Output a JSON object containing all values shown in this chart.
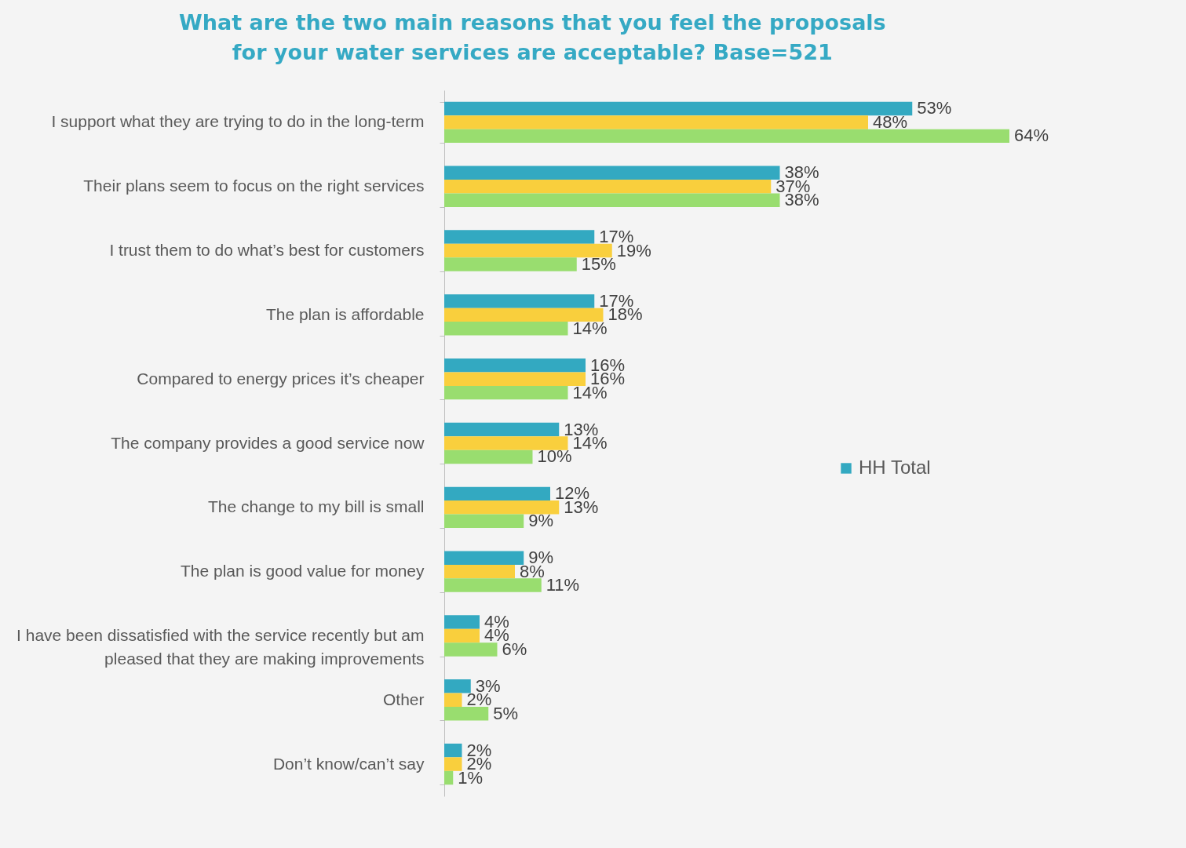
{
  "chart_data": {
    "type": "bar",
    "orientation": "horizontal",
    "title": "What are the two main reasons that you feel the proposals for your water services are acceptable? Base=521",
    "categories": [
      "I support what they are trying to do in the long-term",
      "Their plans seem to focus on the right services",
      "I trust them to do what’s best for customers",
      "The plan is affordable",
      "Compared to energy prices it’s cheaper",
      "The company provides a good service now",
      "The change to my bill is small",
      "The plan is good value for money",
      "I have been dissatisfied with the service recently but am pleased that they are making improvements",
      "Other",
      "Don’t know/can’t say"
    ],
    "series": [
      {
        "name": "HH Total",
        "color": "#33a9c1",
        "values": [
          53,
          38,
          17,
          17,
          16,
          13,
          12,
          9,
          4,
          3,
          2
        ],
        "value_labels": [
          "53%",
          "38%",
          "17%",
          "17%",
          "16%",
          "13%",
          "12%",
          "9%",
          "4%",
          "3%",
          "2%"
        ]
      },
      {
        "color": "#f9cf3d",
        "values": [
          48,
          37,
          19,
          18,
          16,
          14,
          13,
          8,
          4,
          2,
          2
        ],
        "value_labels": [
          "48%",
          "37%",
          "19%",
          "18%",
          "16%",
          "14%",
          "13%",
          "8%",
          "4%",
          "2%",
          "2%"
        ]
      },
      {
        "color": "#99dd6f",
        "values": [
          64,
          38,
          15,
          14,
          14,
          10,
          9,
          11,
          6,
          5,
          1
        ],
        "value_labels": [
          "64%",
          "38%",
          "15%",
          "14%",
          "14%",
          "10%",
          "9%",
          "11%",
          "6%",
          "5%",
          "1%"
        ]
      }
    ],
    "legend": "right"
  }
}
